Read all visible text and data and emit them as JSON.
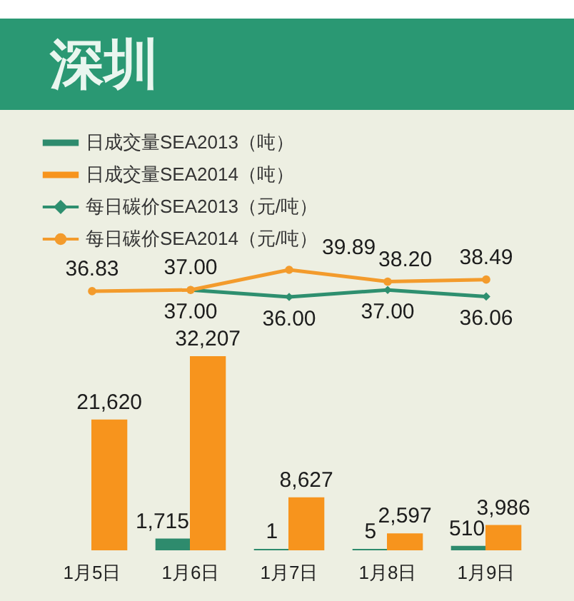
{
  "chart_data": [
    {
      "type": "line",
      "title": "深圳",
      "categories": [
        null,
        null,
        null,
        null,
        null
      ],
      "series": [
        {
          "name": "每日碳价SEA2013（元/吨）",
          "color": "#2e8f6f",
          "marker": "diamond",
          "values": [
            null,
            37.0,
            36.0,
            37.0,
            36.06
          ],
          "value_labels": [
            null,
            "37.00",
            "36.00",
            "37.00",
            "36.06"
          ]
        },
        {
          "name": "每日碳价SEA2014（元/吨）",
          "color": "#f39b2c",
          "marker": "circle",
          "values": [
            36.83,
            37.0,
            39.89,
            38.2,
            38.49
          ],
          "value_labels": [
            "36.83",
            "37.00",
            "39.89",
            "38.20",
            "38.49"
          ]
        }
      ],
      "legend": "top left"
    },
    {
      "type": "bar",
      "categories": [
        "1月5日",
        "1月6日",
        "1月7日",
        "1月8日",
        "1月9日"
      ],
      "series": [
        {
          "name": "日成交量SEA2013（吨）",
          "color": "#2e8b6d",
          "values": [
            null,
            1715,
            1,
            5,
            510
          ],
          "value_labels": [
            null,
            "1,715",
            "1",
            "5",
            "510"
          ]
        },
        {
          "name": "日成交量SEA2014（吨）",
          "color": "#f7941d",
          "values": [
            21620,
            32207,
            8627,
            2597,
            3986
          ],
          "value_labels": [
            "21,620",
            "32,207",
            "8,627",
            "2,597",
            "3,986"
          ]
        }
      ],
      "legend": "top left",
      "tick_labels": "x"
    }
  ]
}
